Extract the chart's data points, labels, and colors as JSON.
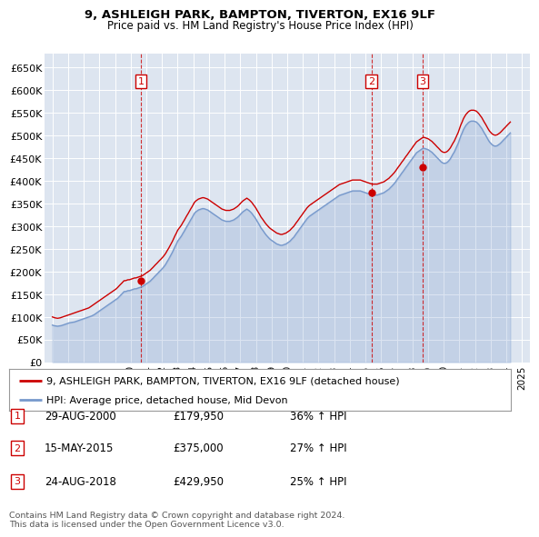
{
  "title": "9, ASHLEIGH PARK, BAMPTON, TIVERTON, EX16 9LF",
  "subtitle": "Price paid vs. HM Land Registry's House Price Index (HPI)",
  "legend_line1": "9, ASHLEIGH PARK, BAMPTON, TIVERTON, EX16 9LF (detached house)",
  "legend_line2": "HPI: Average price, detached house, Mid Devon",
  "footer1": "Contains HM Land Registry data © Crown copyright and database right 2024.",
  "footer2": "This data is licensed under the Open Government Licence v3.0.",
  "sales": [
    {
      "num": 1,
      "date_label": "29-AUG-2000",
      "price_label": "£179,950",
      "pct_label": "36% ↑ HPI",
      "year": 2000.66,
      "price": 179950
    },
    {
      "num": 2,
      "date_label": "15-MAY-2015",
      "price_label": "£375,000",
      "pct_label": "27% ↑ HPI",
      "year": 2015.37,
      "price": 375000
    },
    {
      "num": 3,
      "date_label": "24-AUG-2018",
      "price_label": "£429,950",
      "pct_label": "25% ↑ HPI",
      "year": 2018.65,
      "price": 429950
    }
  ],
  "ylim": [
    0,
    680000
  ],
  "xlim": [
    1994.5,
    2025.5
  ],
  "yticks": [
    0,
    50000,
    100000,
    150000,
    200000,
    250000,
    300000,
    350000,
    400000,
    450000,
    500000,
    550000,
    600000,
    650000
  ],
  "ytick_labels": [
    "£0",
    "£50K",
    "£100K",
    "£150K",
    "£200K",
    "£250K",
    "£300K",
    "£350K",
    "£400K",
    "£450K",
    "£500K",
    "£550K",
    "£600K",
    "£650K"
  ],
  "xticks": [
    1995,
    1996,
    1997,
    1998,
    1999,
    2000,
    2001,
    2002,
    2003,
    2004,
    2005,
    2006,
    2007,
    2008,
    2009,
    2010,
    2011,
    2012,
    2013,
    2014,
    2015,
    2016,
    2017,
    2018,
    2019,
    2020,
    2021,
    2022,
    2023,
    2024,
    2025
  ],
  "background_color": "#dde5f0",
  "red_line_color": "#cc0000",
  "blue_line_color": "#7799cc",
  "red_hpi_x": [
    1995.0,
    1995.08,
    1995.17,
    1995.25,
    1995.33,
    1995.42,
    1995.5,
    1995.58,
    1995.67,
    1995.75,
    1995.83,
    1995.92,
    1996.0,
    1996.08,
    1996.17,
    1996.25,
    1996.33,
    1996.42,
    1996.5,
    1996.58,
    1996.67,
    1996.75,
    1996.83,
    1996.92,
    1997.0,
    1997.08,
    1997.17,
    1997.25,
    1997.33,
    1997.42,
    1997.5,
    1997.58,
    1997.67,
    1997.75,
    1997.83,
    1997.92,
    1998.0,
    1998.08,
    1998.17,
    1998.25,
    1998.33,
    1998.42,
    1998.5,
    1998.58,
    1998.67,
    1998.75,
    1998.83,
    1998.92,
    1999.0,
    1999.08,
    1999.17,
    1999.25,
    1999.33,
    1999.42,
    1999.5,
    1999.58,
    1999.67,
    1999.75,
    1999.83,
    1999.92,
    2000.0,
    2000.08,
    2000.17,
    2000.25,
    2000.33,
    2000.42,
    2000.5,
    2000.58,
    2000.67,
    2000.75,
    2000.83,
    2000.92,
    2001.0,
    2001.08,
    2001.17,
    2001.25,
    2001.33,
    2001.42,
    2001.5,
    2001.58,
    2001.67,
    2001.75,
    2001.83,
    2001.92,
    2002.0,
    2002.08,
    2002.17,
    2002.25,
    2002.33,
    2002.42,
    2002.5,
    2002.58,
    2002.67,
    2002.75,
    2002.83,
    2002.92,
    2003.0,
    2003.08,
    2003.17,
    2003.25,
    2003.33,
    2003.42,
    2003.5,
    2003.58,
    2003.67,
    2003.75,
    2003.83,
    2003.92,
    2004.0,
    2004.08,
    2004.17,
    2004.25,
    2004.33,
    2004.42,
    2004.5,
    2004.58,
    2004.67,
    2004.75,
    2004.83,
    2004.92,
    2005.0,
    2005.08,
    2005.17,
    2005.25,
    2005.33,
    2005.42,
    2005.5,
    2005.58,
    2005.67,
    2005.75,
    2005.83,
    2005.92,
    2006.0,
    2006.08,
    2006.17,
    2006.25,
    2006.33,
    2006.42,
    2006.5,
    2006.58,
    2006.67,
    2006.75,
    2006.83,
    2006.92,
    2007.0,
    2007.08,
    2007.17,
    2007.25,
    2007.33,
    2007.42,
    2007.5,
    2007.58,
    2007.67,
    2007.75,
    2007.83,
    2007.92,
    2008.0,
    2008.08,
    2008.17,
    2008.25,
    2008.33,
    2008.42,
    2008.5,
    2008.58,
    2008.67,
    2008.75,
    2008.83,
    2008.92,
    2009.0,
    2009.08,
    2009.17,
    2009.25,
    2009.33,
    2009.42,
    2009.5,
    2009.58,
    2009.67,
    2009.75,
    2009.83,
    2009.92,
    2010.0,
    2010.08,
    2010.17,
    2010.25,
    2010.33,
    2010.42,
    2010.5,
    2010.58,
    2010.67,
    2010.75,
    2010.83,
    2010.92,
    2011.0,
    2011.08,
    2011.17,
    2011.25,
    2011.33,
    2011.42,
    2011.5,
    2011.58,
    2011.67,
    2011.75,
    2011.83,
    2011.92,
    2012.0,
    2012.08,
    2012.17,
    2012.25,
    2012.33,
    2012.42,
    2012.5,
    2012.58,
    2012.67,
    2012.75,
    2012.83,
    2012.92,
    2013.0,
    2013.08,
    2013.17,
    2013.25,
    2013.33,
    2013.42,
    2013.5,
    2013.58,
    2013.67,
    2013.75,
    2013.83,
    2013.92,
    2014.0,
    2014.08,
    2014.17,
    2014.25,
    2014.33,
    2014.42,
    2014.5,
    2014.58,
    2014.67,
    2014.75,
    2014.83,
    2014.92,
    2015.0,
    2015.08,
    2015.17,
    2015.25,
    2015.33,
    2015.42,
    2015.5,
    2015.58,
    2015.67,
    2015.75,
    2015.83,
    2015.92,
    2016.0,
    2016.08,
    2016.17,
    2016.25,
    2016.33,
    2016.42,
    2016.5,
    2016.58,
    2016.67,
    2016.75,
    2016.83,
    2016.92,
    2017.0,
    2017.08,
    2017.17,
    2017.25,
    2017.33,
    2017.42,
    2017.5,
    2017.58,
    2017.67,
    2017.75,
    2017.83,
    2017.92,
    2018.0,
    2018.08,
    2018.17,
    2018.25,
    2018.33,
    2018.42,
    2018.5,
    2018.58,
    2018.67,
    2018.75,
    2018.83,
    2018.92,
    2019.0,
    2019.08,
    2019.17,
    2019.25,
    2019.33,
    2019.42,
    2019.5,
    2019.58,
    2019.67,
    2019.75,
    2019.83,
    2019.92,
    2020.0,
    2020.08,
    2020.17,
    2020.25,
    2020.33,
    2020.42,
    2020.5,
    2020.58,
    2020.67,
    2020.75,
    2020.83,
    2020.92,
    2021.0,
    2021.08,
    2021.17,
    2021.25,
    2021.33,
    2021.42,
    2021.5,
    2021.58,
    2021.67,
    2021.75,
    2021.83,
    2021.92,
    2022.0,
    2022.08,
    2022.17,
    2022.25,
    2022.33,
    2022.42,
    2022.5,
    2022.58,
    2022.67,
    2022.75,
    2022.83,
    2022.92,
    2023.0,
    2023.08,
    2023.17,
    2023.25,
    2023.33,
    2023.42,
    2023.5,
    2023.58,
    2023.67,
    2023.75,
    2023.83,
    2023.92,
    2024.0,
    2024.08,
    2024.17,
    2024.25,
    2024.33,
    2024.42,
    2024.5
  ],
  "red_price_y_raw": [
    100000,
    99000,
    98000,
    97500,
    97000,
    97500,
    98000,
    99000,
    100000,
    101000,
    102000,
    103000,
    104000,
    105000,
    106000,
    107000,
    108000,
    109000,
    110000,
    111000,
    112000,
    113000,
    114000,
    115000,
    116000,
    117000,
    118000,
    119000,
    120000,
    122000,
    124000,
    126000,
    128000,
    130000,
    132000,
    134000,
    136000,
    138000,
    140000,
    142000,
    144000,
    146000,
    148000,
    150000,
    152000,
    154000,
    156000,
    158000,
    160000,
    162000,
    165000,
    168000,
    171000,
    174000,
    177000,
    180000,
    180000,
    181000,
    182000,
    182000,
    183000,
    184000,
    185000,
    186000,
    186000,
    187000,
    188000,
    189000,
    190000,
    191000,
    193000,
    195000,
    197000,
    199000,
    201000,
    203000,
    206000,
    209000,
    212000,
    215000,
    218000,
    221000,
    224000,
    227000,
    230000,
    233000,
    237000,
    241000,
    246000,
    251000,
    256000,
    261000,
    267000,
    273000,
    279000,
    285000,
    291000,
    295000,
    299000,
    303000,
    308000,
    313000,
    318000,
    323000,
    328000,
    333000,
    338000,
    343000,
    348000,
    353000,
    356000,
    358000,
    360000,
    361000,
    362000,
    363000,
    363000,
    362000,
    361000,
    360000,
    358000,
    356000,
    354000,
    352000,
    350000,
    348000,
    346000,
    344000,
    342000,
    340000,
    338000,
    337000,
    336000,
    335000,
    335000,
    335000,
    335000,
    336000,
    337000,
    338000,
    340000,
    342000,
    344000,
    347000,
    350000,
    353000,
    356000,
    358000,
    360000,
    362000,
    360000,
    358000,
    355000,
    352000,
    348000,
    344000,
    340000,
    335000,
    330000,
    325000,
    320000,
    316000,
    312000,
    308000,
    304000,
    301000,
    298000,
    295000,
    293000,
    291000,
    289000,
    287000,
    285000,
    284000,
    283000,
    282000,
    282000,
    283000,
    284000,
    285000,
    287000,
    289000,
    291000,
    294000,
    297000,
    300000,
    304000,
    308000,
    312000,
    316000,
    320000,
    324000,
    328000,
    332000,
    336000,
    340000,
    343000,
    346000,
    348000,
    350000,
    352000,
    354000,
    356000,
    358000,
    360000,
    362000,
    364000,
    366000,
    368000,
    370000,
    372000,
    374000,
    376000,
    378000,
    380000,
    382000,
    384000,
    386000,
    388000,
    390000,
    392000,
    393000,
    394000,
    395000,
    396000,
    397000,
    398000,
    399000,
    400000,
    401000,
    402000,
    402000,
    402000,
    402000,
    402000,
    402000,
    402000,
    401000,
    400000,
    399000,
    398000,
    397000,
    396000,
    395000,
    394000,
    393000,
    393000,
    393000,
    393000,
    393000,
    394000,
    395000,
    396000,
    397000,
    398000,
    400000,
    402000,
    404000,
    406000,
    409000,
    412000,
    415000,
    418000,
    422000,
    426000,
    430000,
    434000,
    438000,
    442000,
    446000,
    450000,
    454000,
    458000,
    462000,
    466000,
    470000,
    474000,
    478000,
    482000,
    486000,
    488000,
    490000,
    492000,
    494000,
    496000,
    496000,
    495000,
    494000,
    493000,
    491000,
    489000,
    487000,
    484000,
    481000,
    478000,
    475000,
    472000,
    469000,
    466000,
    464000,
    463000,
    463000,
    464000,
    466000,
    469000,
    473000,
    478000,
    483000,
    488000,
    494000,
    500000,
    507000,
    515000,
    523000,
    530000,
    537000,
    542000,
    547000,
    550000,
    553000,
    555000,
    556000,
    556000,
    556000,
    555000,
    554000,
    551000,
    548000,
    544000,
    540000,
    535000,
    530000,
    525000,
    520000,
    515000,
    510000,
    507000,
    504000,
    502000,
    501000,
    501000,
    502000,
    504000,
    506000,
    509000,
    512000,
    515000,
    518000,
    521000,
    524000,
    527000,
    530000
  ],
  "blue_hpi_y_raw": [
    82000,
    81000,
    80500,
    80000,
    79500,
    80000,
    80500,
    81000,
    82000,
    83000,
    84000,
    85000,
    86000,
    87000,
    87500,
    88000,
    88500,
    89000,
    90000,
    91000,
    92000,
    93000,
    94000,
    95000,
    96000,
    97000,
    98000,
    99000,
    100000,
    101000,
    102000,
    103500,
    105000,
    107000,
    109000,
    111000,
    113000,
    115000,
    117000,
    119000,
    121000,
    123000,
    125000,
    127000,
    129000,
    131000,
    133000,
    135000,
    137000,
    139000,
    141000,
    144000,
    147000,
    150000,
    153000,
    156000,
    156000,
    157000,
    158000,
    158000,
    159000,
    160000,
    161000,
    162000,
    162000,
    163000,
    164000,
    165000,
    166000,
    167000,
    169000,
    171000,
    173000,
    175000,
    177000,
    179000,
    182000,
    185000,
    188000,
    191000,
    194000,
    197000,
    200000,
    203000,
    206000,
    209000,
    213000,
    217000,
    222000,
    227000,
    232000,
    237000,
    243000,
    249000,
    255000,
    261000,
    267000,
    271000,
    275000,
    279000,
    284000,
    289000,
    294000,
    299000,
    304000,
    309000,
    314000,
    319000,
    324000,
    329000,
    332000,
    334000,
    336000,
    337000,
    338000,
    339000,
    339000,
    338000,
    337000,
    336000,
    334000,
    332000,
    330000,
    328000,
    326000,
    324000,
    322000,
    320000,
    318000,
    316000,
    314000,
    313000,
    312000,
    311000,
    311000,
    311000,
    311000,
    312000,
    313000,
    314000,
    316000,
    318000,
    320000,
    323000,
    326000,
    329000,
    332000,
    334000,
    336000,
    338000,
    336000,
    334000,
    331000,
    328000,
    324000,
    320000,
    316000,
    311000,
    306000,
    301000,
    296000,
    292000,
    288000,
    284000,
    280000,
    277000,
    274000,
    271000,
    269000,
    267000,
    265000,
    263000,
    261000,
    260000,
    259000,
    258000,
    258000,
    259000,
    260000,
    261000,
    263000,
    265000,
    267000,
    270000,
    273000,
    276000,
    280000,
    284000,
    288000,
    292000,
    296000,
    300000,
    304000,
    308000,
    312000,
    316000,
    319000,
    322000,
    324000,
    326000,
    328000,
    330000,
    332000,
    334000,
    336000,
    338000,
    340000,
    342000,
    344000,
    346000,
    348000,
    350000,
    352000,
    354000,
    356000,
    358000,
    360000,
    362000,
    364000,
    366000,
    368000,
    369000,
    370000,
    371000,
    372000,
    373000,
    374000,
    375000,
    376000,
    377000,
    378000,
    378000,
    378000,
    378000,
    378000,
    378000,
    378000,
    377000,
    376000,
    375000,
    374000,
    373000,
    372000,
    371000,
    370000,
    369000,
    369000,
    369000,
    369000,
    369000,
    370000,
    371000,
    372000,
    373000,
    374000,
    376000,
    378000,
    380000,
    382000,
    385000,
    388000,
    391000,
    394000,
    398000,
    402000,
    406000,
    410000,
    414000,
    418000,
    422000,
    426000,
    430000,
    434000,
    438000,
    442000,
    446000,
    450000,
    454000,
    458000,
    462000,
    464000,
    466000,
    468000,
    470000,
    472000,
    472000,
    471000,
    470000,
    469000,
    467000,
    465000,
    463000,
    460000,
    457000,
    454000,
    451000,
    448000,
    445000,
    442000,
    440000,
    439000,
    439000,
    440000,
    442000,
    445000,
    449000,
    454000,
    459000,
    464000,
    470000,
    476000,
    483000,
    491000,
    499000,
    506000,
    513000,
    518000,
    523000,
    526000,
    529000,
    531000,
    532000,
    532000,
    532000,
    531000,
    530000,
    527000,
    524000,
    520000,
    516000,
    511000,
    506000,
    501000,
    496000,
    491000,
    486000,
    483000,
    480000,
    478000,
    477000,
    477000,
    478000,
    480000,
    482000,
    485000,
    488000,
    491000,
    494000,
    497000,
    500000,
    503000,
    506000
  ]
}
